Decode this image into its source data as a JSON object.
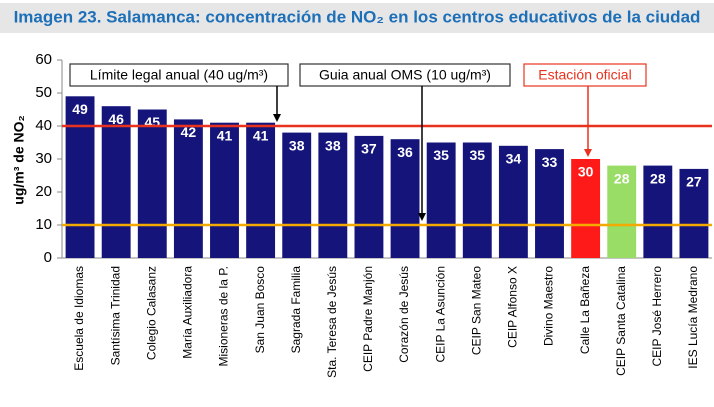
{
  "chart_data": {
    "type": "bar",
    "title": "Imagen 23. Salamanca: concentración de NO₂ en los centros educativos de la ciudad",
    "y_label": "ug/m³ de NO₂",
    "categories": [
      "Escuela de Idiomas",
      "Santísima Trinidad",
      "Colegio Calasanz",
      "María Auxiliadora",
      "Misioneras de la P.",
      "San Juan Bosco",
      "Sagrada Familia",
      "Sta. Teresa de Jesús",
      "CEIP Padre Manjón",
      "Corazón de Jesús",
      "CEIP La Asunción",
      "CEIP San Mateo",
      "CEIP Alfonso X",
      "Divino Maestro",
      "Calle La Bañeza",
      "CEIP Santa Catalina",
      "CEIP José Herrero",
      "IES Lucía Medrano"
    ],
    "values": [
      49,
      46,
      45,
      42,
      41,
      41,
      38,
      38,
      37,
      36,
      35,
      35,
      34,
      33,
      30,
      28,
      28,
      27
    ],
    "colors": [
      "#14147a",
      "#14147a",
      "#14147a",
      "#14147a",
      "#14147a",
      "#14147a",
      "#14147a",
      "#14147a",
      "#14147a",
      "#14147a",
      "#14147a",
      "#14147a",
      "#14147a",
      "#14147a",
      "#ff1a1a",
      "#99dd66",
      "#14147a",
      "#14147a"
    ],
    "ylim": [
      0,
      60
    ],
    "yticks": [
      0,
      10,
      20,
      30,
      40,
      50,
      60
    ],
    "reference_lines": [
      {
        "value": 40,
        "color": "#e8321e",
        "label": "Límite legal anual (40 ug/m³)"
      },
      {
        "value": 10,
        "color": "#f2a900",
        "label": "Guia anual OMS (10 ug/m³)"
      }
    ],
    "annotation": "Estación oficial"
  }
}
